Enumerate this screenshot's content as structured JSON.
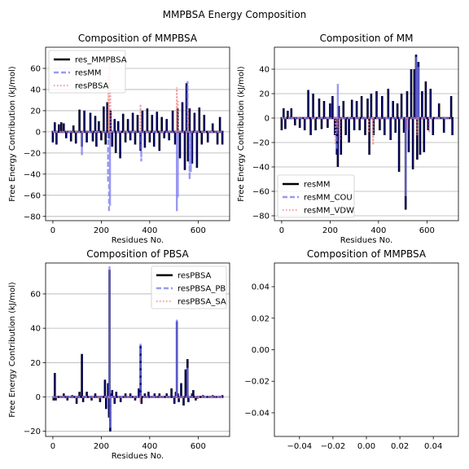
{
  "figure_title": "MMPBSA Energy Composition",
  "chart_data": [
    {
      "type": "line",
      "title": "Composition of MMPBSA",
      "xlabel": "Residues No.",
      "ylabel": "Free Energy Contribution (kJ/mol)",
      "xlim": [
        -30,
        730
      ],
      "ylim": [
        -84,
        80
      ],
      "xticks": [
        0,
        200,
        400,
        600
      ],
      "yticks": [
        -80,
        -60,
        -40,
        -20,
        0,
        20,
        40,
        60
      ],
      "grid": "horizontal",
      "legend_position": "top-left",
      "series": [
        {
          "name": "res_MMPBSA",
          "color": "#000000",
          "style": "solid",
          "spikes": [
            [
              0,
              -10
            ],
            [
              8,
              9
            ],
            [
              15,
              -12
            ],
            [
              25,
              7
            ],
            [
              35,
              9
            ],
            [
              45,
              8
            ],
            [
              55,
              -6
            ],
            [
              75,
              -9
            ],
            [
              85,
              6
            ],
            [
              95,
              -11
            ],
            [
              110,
              21
            ],
            [
              120,
              -14
            ],
            [
              130,
              20
            ],
            [
              140,
              -10
            ],
            [
              155,
              18
            ],
            [
              165,
              -9
            ],
            [
              175,
              15
            ],
            [
              180,
              -14
            ],
            [
              190,
              10
            ],
            [
              200,
              -8
            ],
            [
              210,
              24
            ],
            [
              218,
              -12
            ],
            [
              225,
              28
            ],
            [
              232,
              -6
            ],
            [
              238,
              20
            ],
            [
              245,
              -14
            ],
            [
              255,
              12
            ],
            [
              260,
              -20
            ],
            [
              270,
              10
            ],
            [
              278,
              -25
            ],
            [
              290,
              17
            ],
            [
              300,
              -10
            ],
            [
              310,
              12
            ],
            [
              320,
              -8
            ],
            [
              330,
              18
            ],
            [
              340,
              -12
            ],
            [
              350,
              16
            ],
            [
              362,
              -18
            ],
            [
              370,
              20
            ],
            [
              380,
              -15
            ],
            [
              390,
              22
            ],
            [
              400,
              -10
            ],
            [
              410,
              16
            ],
            [
              418,
              -14
            ],
            [
              430,
              19
            ],
            [
              440,
              -18
            ],
            [
              450,
              14
            ],
            [
              460,
              -6
            ],
            [
              470,
              12
            ],
            [
              480,
              -8
            ],
            [
              495,
              20
            ],
            [
              505,
              -12
            ],
            [
              515,
              22
            ],
            [
              525,
              -25
            ],
            [
              535,
              28
            ],
            [
              545,
              -36
            ],
            [
              552,
              46
            ],
            [
              558,
              -28
            ],
            [
              565,
              22
            ],
            [
              575,
              -30
            ],
            [
              585,
              18
            ],
            [
              595,
              -34
            ],
            [
              605,
              23
            ],
            [
              615,
              -12
            ],
            [
              625,
              16
            ],
            [
              640,
              -10
            ],
            [
              660,
              8
            ],
            [
              680,
              -12
            ],
            [
              690,
              14
            ],
            [
              700,
              -12
            ]
          ]
        },
        {
          "name": "resMM",
          "color": "#7777ee",
          "style": "dashed",
          "spikes": [
            [
              120,
              -22
            ],
            [
              228,
              -48
            ],
            [
              232,
              -76
            ],
            [
              236,
              -70
            ],
            [
              365,
              -28
            ],
            [
              512,
              -75
            ],
            [
              516,
              -62
            ],
            [
              556,
              48
            ],
            [
              565,
              -45
            ],
            [
              570,
              -38
            ]
          ]
        },
        {
          "name": "resPBSA",
          "color": "#f08080",
          "style": "dotted",
          "spikes": [
            [
              230,
              52
            ],
            [
              234,
              72
            ],
            [
              238,
              40
            ],
            [
              362,
              26
            ],
            [
              512,
              42
            ],
            [
              516,
              30
            ],
            [
              558,
              22
            ]
          ]
        }
      ]
    },
    {
      "type": "line",
      "title": "Composition of MM",
      "xlabel": "Residues No.",
      "ylabel": "Free Energy Contribution (kJ/mol)",
      "xlim": [
        -30,
        730
      ],
      "ylim": [
        -84,
        58
      ],
      "xticks": [
        0,
        200,
        400,
        600
      ],
      "yticks": [
        -80,
        -60,
        -40,
        -20,
        0,
        20,
        40
      ],
      "grid": "horizontal",
      "legend_position": "bottom-left",
      "series": [
        {
          "name": "resMM",
          "color": "#000000",
          "style": "solid",
          "spikes": [
            [
              0,
              -10
            ],
            [
              8,
              8
            ],
            [
              15,
              -9
            ],
            [
              25,
              6
            ],
            [
              40,
              8
            ],
            [
              55,
              -6
            ],
            [
              75,
              -8
            ],
            [
              95,
              -10
            ],
            [
              110,
              23
            ],
            [
              120,
              -14
            ],
            [
              130,
              20
            ],
            [
              140,
              -10
            ],
            [
              155,
              16
            ],
            [
              165,
              -9
            ],
            [
              175,
              14
            ],
            [
              190,
              -8
            ],
            [
              200,
              12
            ],
            [
              210,
              18
            ],
            [
              220,
              -14
            ],
            [
              228,
              -30
            ],
            [
              232,
              -40
            ],
            [
              236,
              10
            ],
            [
              245,
              -30
            ],
            [
              255,
              14
            ],
            [
              265,
              -14
            ],
            [
              278,
              -20
            ],
            [
              290,
              15
            ],
            [
              300,
              -10
            ],
            [
              310,
              14
            ],
            [
              322,
              -10
            ],
            [
              330,
              18
            ],
            [
              345,
              -14
            ],
            [
              355,
              16
            ],
            [
              362,
              -30
            ],
            [
              370,
              20
            ],
            [
              380,
              -14
            ],
            [
              392,
              22
            ],
            [
              405,
              -10
            ],
            [
              415,
              18
            ],
            [
              425,
              -14
            ],
            [
              440,
              24
            ],
            [
              450,
              -18
            ],
            [
              460,
              14
            ],
            [
              470,
              -12
            ],
            [
              478,
              12
            ],
            [
              485,
              -44
            ],
            [
              495,
              20
            ],
            [
              505,
              -12
            ],
            [
              512,
              -75
            ],
            [
              518,
              22
            ],
            [
              525,
              -28
            ],
            [
              535,
              40
            ],
            [
              542,
              -42
            ],
            [
              548,
              40
            ],
            [
              555,
              52
            ],
            [
              560,
              -34
            ],
            [
              565,
              46
            ],
            [
              572,
              -30
            ],
            [
              580,
              22
            ],
            [
              588,
              -28
            ],
            [
              595,
              30
            ],
            [
              605,
              -10
            ],
            [
              615,
              24
            ],
            [
              625,
              -14
            ],
            [
              650,
              12
            ],
            [
              670,
              -12
            ],
            [
              700,
              18
            ],
            [
              705,
              -14
            ]
          ]
        },
        {
          "name": "resMM_COU",
          "color": "#7777ee",
          "style": "dashed",
          "spikes": [
            [
              228,
              -26
            ],
            [
              232,
              28
            ],
            [
              512,
              -64
            ],
            [
              556,
              50
            ],
            [
              565,
              42
            ]
          ]
        },
        {
          "name": "resMM_VDW",
          "color": "#f08080",
          "style": "dotted",
          "spikes": [
            [
              222,
              -22
            ],
            [
              230,
              -10
            ],
            [
              240,
              -18
            ],
            [
              360,
              -12
            ],
            [
              378,
              -22
            ],
            [
              520,
              -10
            ],
            [
              560,
              -14
            ],
            [
              610,
              -12
            ]
          ]
        }
      ]
    },
    {
      "type": "line",
      "title": "Composition of PBSA",
      "xlabel": "Residues No.",
      "ylabel": "Free Energy Contribution (kJ/mol)",
      "xlim": [
        -30,
        730
      ],
      "ylim": [
        -23,
        78
      ],
      "xticks": [
        0,
        200,
        400,
        600
      ],
      "yticks": [
        -20,
        0,
        20,
        40,
        60
      ],
      "grid": "horizontal",
      "legend_position": "top-right",
      "series": [
        {
          "name": "resPBSA",
          "color": "#000000",
          "style": "solid",
          "spikes": [
            [
              3,
              -2
            ],
            [
              8,
              14
            ],
            [
              12,
              -2
            ],
            [
              45,
              2
            ],
            [
              60,
              -2
            ],
            [
              80,
              1
            ],
            [
              98,
              -4
            ],
            [
              110,
              3
            ],
            [
              120,
              25
            ],
            [
              125,
              -3
            ],
            [
              140,
              3
            ],
            [
              160,
              -2
            ],
            [
              175,
              2
            ],
            [
              195,
              -3
            ],
            [
              215,
              10
            ],
            [
              220,
              -7
            ],
            [
              228,
              8
            ],
            [
              232,
              -12
            ],
            [
              234,
              74
            ],
            [
              237,
              -20
            ],
            [
              240,
              2
            ],
            [
              245,
              4
            ],
            [
              255,
              -4
            ],
            [
              262,
              3
            ],
            [
              280,
              -3
            ],
            [
              300,
              2
            ],
            [
              320,
              2
            ],
            [
              340,
              -2
            ],
            [
              355,
              5
            ],
            [
              362,
              30
            ],
            [
              366,
              -4
            ],
            [
              380,
              2
            ],
            [
              395,
              3
            ],
            [
              420,
              2
            ],
            [
              440,
              2
            ],
            [
              470,
              2
            ],
            [
              490,
              5
            ],
            [
              502,
              -4
            ],
            [
              508,
              3
            ],
            [
              512,
              44
            ],
            [
              516,
              2
            ],
            [
              520,
              -3
            ],
            [
              530,
              8
            ],
            [
              540,
              -5
            ],
            [
              548,
              16
            ],
            [
              552,
              2
            ],
            [
              556,
              22
            ],
            [
              560,
              -3
            ],
            [
              575,
              2
            ],
            [
              580,
              4
            ],
            [
              590,
              -2
            ],
            [
              598,
              -1
            ],
            [
              620,
              1
            ],
            [
              660,
              1
            ],
            [
              700,
              1
            ]
          ]
        },
        {
          "name": "resPBSA_PB",
          "color": "#7777ee",
          "style": "dashed",
          "spikes": [
            [
              234,
              76
            ],
            [
              237,
              -18
            ],
            [
              362,
              31
            ],
            [
              512,
              45
            ],
            [
              556,
              17
            ]
          ]
        },
        {
          "name": "resPBSA_SA",
          "color": "#f08080",
          "style": "dotted",
          "spikes": [
            [
              200,
              -1
            ],
            [
              234,
              -1
            ],
            [
              360,
              -3
            ],
            [
              520,
              -1
            ],
            [
              600,
              -1
            ]
          ]
        }
      ]
    },
    {
      "type": "line",
      "title": "Composition of MMPBSA",
      "xlabel": "",
      "ylabel": "",
      "xlim": [
        -0.055,
        0.055
      ],
      "ylim": [
        -0.055,
        0.055
      ],
      "xticks": [
        -0.04,
        -0.02,
        0.0,
        0.02,
        0.04
      ],
      "yticks": [
        -0.04,
        -0.02,
        0.0,
        0.02,
        0.04
      ],
      "xtick_labels": [
        "−0.04",
        "−0.02",
        "0.00",
        "0.02",
        "0.04"
      ],
      "ytick_labels": [
        "−0.04",
        "−0.02",
        "0.00",
        "0.02",
        "0.04"
      ],
      "grid": "none",
      "series": []
    }
  ]
}
